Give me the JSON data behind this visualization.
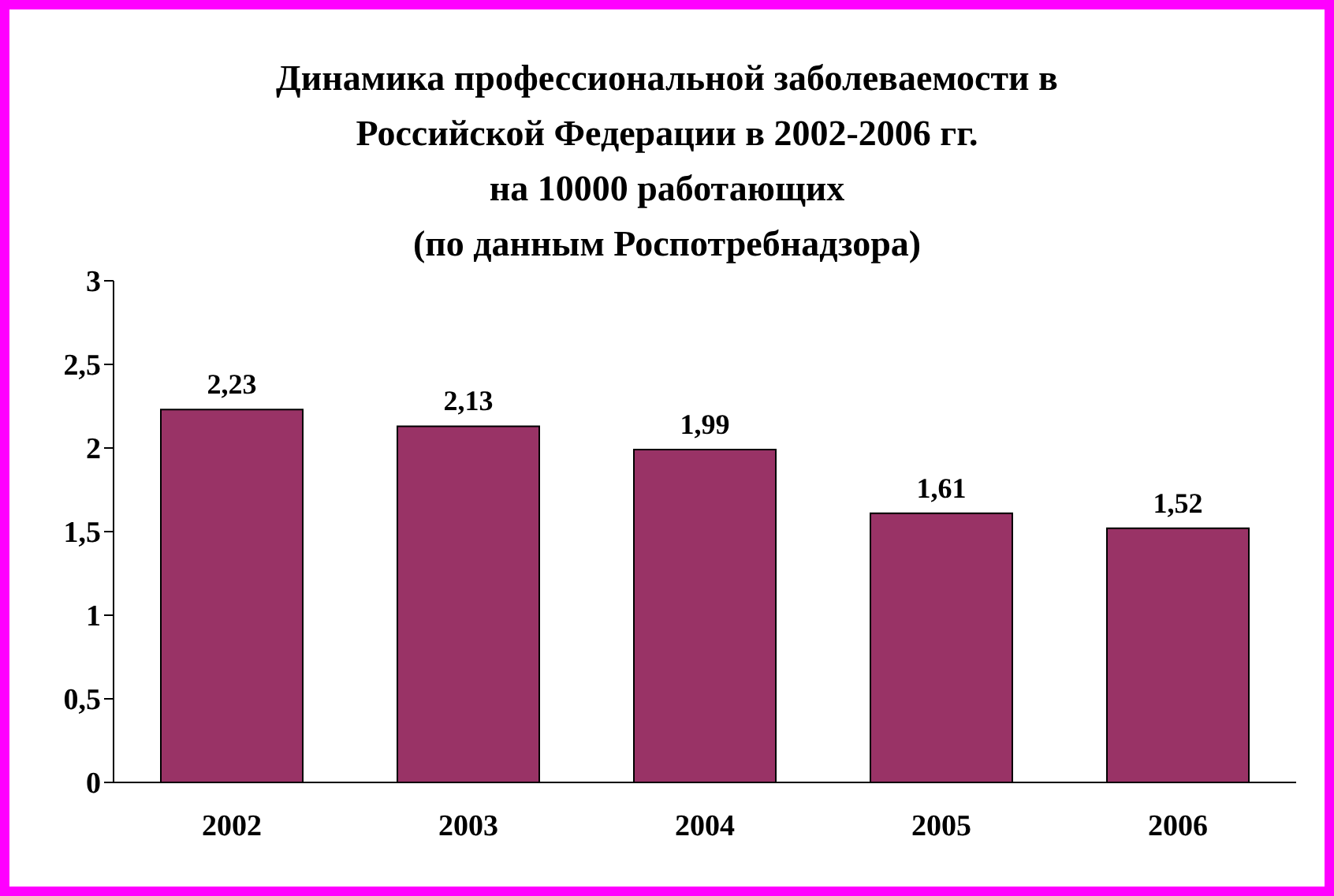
{
  "chart_data": {
    "type": "bar",
    "title": "Динамика профессиональной заболеваемости в\nРоссийской Федерации в 2002-2006 гг.\nна 10000 работающих\n(по данным Роспотребнадзора)",
    "categories": [
      "2002",
      "2003",
      "2004",
      "2005",
      "2006"
    ],
    "values": [
      2.23,
      2.13,
      1.99,
      1.61,
      1.52
    ],
    "value_labels": [
      "2,23",
      "2,13",
      "1,99",
      "1,61",
      "1,52"
    ],
    "color": "#993366",
    "ylim": [
      0,
      3
    ],
    "yticks": [
      {
        "value": 0,
        "label": "0"
      },
      {
        "value": 0.5,
        "label": "0,5"
      },
      {
        "value": 1,
        "label": "1"
      },
      {
        "value": 1.5,
        "label": "1,5"
      },
      {
        "value": 2,
        "label": "2"
      },
      {
        "value": 2.5,
        "label": "2,5"
      },
      {
        "value": 3,
        "label": "3"
      }
    ],
    "grid": false,
    "legend": false
  }
}
